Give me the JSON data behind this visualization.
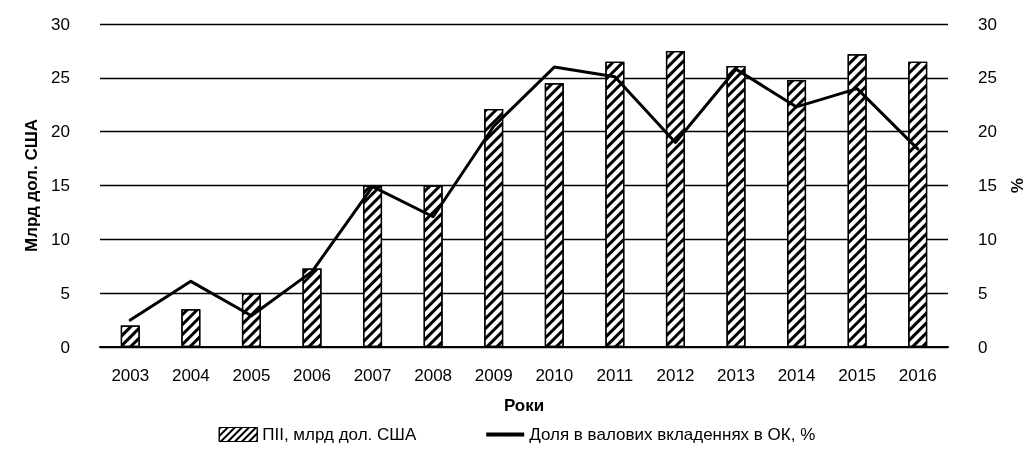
{
  "chart_data": {
    "type": "bar",
    "xlabel": "Роки",
    "ylabel": "Млрд дол. США",
    "y2label": "%",
    "categories": [
      "2003",
      "2004",
      "2005",
      "2006",
      "2007",
      "2008",
      "2009",
      "2010",
      "2011",
      "2012",
      "2013",
      "2014",
      "2015",
      "2016"
    ],
    "series": [
      {
        "name": "ПІІ, млрд дол. США",
        "color": "#000000",
        "values": [
          2.0,
          3.5,
          5.0,
          7.3,
          15.0,
          15.0,
          22.1,
          24.5,
          26.5,
          27.5,
          26.1,
          24.8,
          27.2,
          26.5
        ]
      },
      {
        "name": "Доля в валових вкладеннях в ОК, %",
        "type": "line",
        "axis": "y2",
        "color": "#000000",
        "values": [
          2.5,
          6.1,
          2.9,
          7.0,
          14.9,
          12.1,
          20.5,
          26.0,
          25.1,
          19.0,
          25.8,
          22.3,
          24.0,
          18.4
        ]
      }
    ],
    "ylim": [
      0,
      30
    ],
    "yticks": [
      0,
      5,
      10,
      15,
      20,
      25,
      30
    ],
    "y2lim": [
      0,
      30
    ],
    "y2ticks": [
      0,
      5,
      10,
      15,
      20,
      25,
      30
    ],
    "grid": "y",
    "legend": "bottom",
    "marker": "none",
    "line_style": "solid"
  }
}
